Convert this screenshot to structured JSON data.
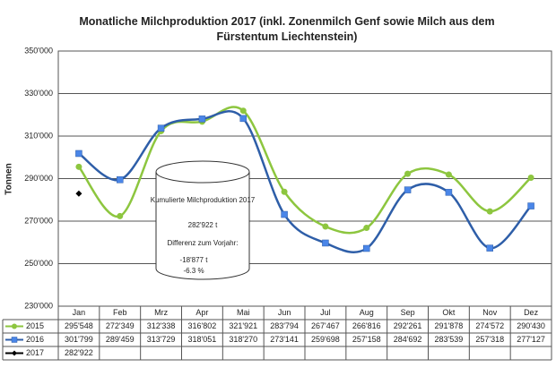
{
  "chart_data": {
    "type": "line",
    "title": "Monatliche Milchproduktion 2017 (inkl. Zonenmilch Genf sowie Milch aus dem Fürstentum Liechtenstein)",
    "y_label": "Tonnen",
    "categories": [
      "Jan",
      "Feb",
      "Mrz",
      "Apr",
      "Mai",
      "Jun",
      "Jul",
      "Aug",
      "Sep",
      "Okt",
      "Nov",
      "Dez"
    ],
    "series": [
      {
        "name": "2015",
        "color": "#8dc63f",
        "marker": "circle",
        "smooth": true,
        "values": [
          295548,
          272349,
          312338,
          316802,
          321921,
          283794,
          267467,
          266816,
          292261,
          291878,
          274572,
          290430
        ],
        "value_labels": [
          "295'548",
          "272'349",
          "312'338",
          "316'802",
          "321'921",
          "283'794",
          "267'467",
          "266'816",
          "292'261",
          "291'878",
          "274'572",
          "290'430"
        ]
      },
      {
        "name": "2016",
        "color": "#2e5ea8",
        "marker_color": "#4a86e8",
        "marker": "square",
        "smooth": true,
        "values": [
          301799,
          289459,
          313729,
          318051,
          318270,
          273141,
          259698,
          257158,
          284692,
          283539,
          257318,
          277127
        ],
        "value_labels": [
          "301'799",
          "289'459",
          "313'729",
          "318'051",
          "318'270",
          "273'141",
          "259'698",
          "257'158",
          "284'692",
          "283'539",
          "257'318",
          "277'127"
        ]
      },
      {
        "name": "2017",
        "color": "#000000",
        "marker": "diamond",
        "smooth": true,
        "values": [
          282922,
          null,
          null,
          null,
          null,
          null,
          null,
          null,
          null,
          null,
          null,
          null
        ],
        "value_labels": [
          "282'922",
          null,
          null,
          null,
          null,
          null,
          null,
          null,
          null,
          null,
          null,
          null
        ]
      }
    ],
    "ylim": [
      230000,
      350000
    ],
    "yticks": [
      {
        "value": 230000,
        "label": "230'000"
      },
      {
        "value": 250000,
        "label": "250'000"
      },
      {
        "value": 270000,
        "label": "270'000"
      },
      {
        "value": 290000,
        "label": "290'000"
      },
      {
        "value": 310000,
        "label": "310'000"
      },
      {
        "value": 330000,
        "label": "330'000"
      },
      {
        "value": 350000,
        "label": "350'000"
      }
    ],
    "grid": true,
    "annotation": {
      "heading": "Kumulierte Milchproduktion 2017",
      "total": "282'922 t",
      "diff_heading": "Differenz zum Vorjahr:",
      "diff_abs": "-18'877 t",
      "diff_pct": "-6.3 %"
    }
  }
}
